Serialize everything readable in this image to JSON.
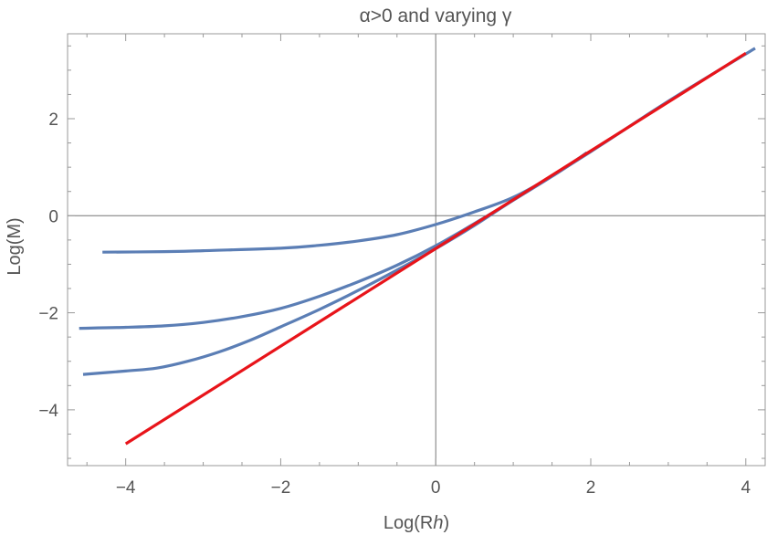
{
  "chart_data": {
    "type": "line",
    "title": "α>0 and varying γ",
    "xlabel": "Log(R",
    "xlabel_sub": "h",
    "xlabel_end": ")",
    "ylabel": "Log(M)",
    "xlim": [
      -4.75,
      4.25
    ],
    "ylim": [
      -5.15,
      3.75
    ],
    "x_ticks": [
      -4,
      -2,
      0,
      2,
      4
    ],
    "x_tick_labels": [
      "−4",
      "−2",
      "0",
      "2",
      "4"
    ],
    "y_ticks": [
      -4,
      -2,
      0,
      2
    ],
    "y_tick_labels": [
      "−4",
      "−2",
      "0",
      "2"
    ],
    "grid": false,
    "series": [
      {
        "color": "#5b7eb5",
        "points": [
          [
            -4.3,
            -0.75
          ],
          [
            -3.5,
            -0.74
          ],
          [
            -3.0,
            -0.72
          ],
          [
            -2.0,
            -0.67
          ],
          [
            -1.5,
            -0.61
          ],
          [
            -1.0,
            -0.52
          ],
          [
            -0.5,
            -0.39
          ],
          [
            0.0,
            -0.18
          ],
          [
            0.5,
            0.08
          ],
          [
            1.0,
            0.38
          ],
          [
            1.5,
            0.82
          ],
          [
            1.95,
            1.3
          ]
        ]
      },
      {
        "color": "#5b7eb5",
        "points": [
          [
            -4.6,
            -2.32
          ],
          [
            -4.0,
            -2.3
          ],
          [
            -3.5,
            -2.27
          ],
          [
            -3.0,
            -2.2
          ],
          [
            -2.5,
            -2.08
          ],
          [
            -2.0,
            -1.91
          ],
          [
            -1.5,
            -1.66
          ],
          [
            -1.0,
            -1.36
          ],
          [
            -0.5,
            -1.02
          ],
          [
            0.0,
            -0.62
          ],
          [
            0.5,
            -0.16
          ],
          [
            1.0,
            0.32
          ],
          [
            1.5,
            0.81
          ],
          [
            1.92,
            1.25
          ]
        ]
      },
      {
        "color": "#5b7eb5",
        "points": [
          [
            -4.55,
            -3.27
          ],
          [
            -4.0,
            -3.2
          ],
          [
            -3.6,
            -3.14
          ],
          [
            -3.2,
            -3.0
          ],
          [
            -2.8,
            -2.81
          ],
          [
            -2.4,
            -2.57
          ],
          [
            -2.0,
            -2.29
          ],
          [
            -1.5,
            -1.93
          ],
          [
            -1.0,
            -1.54
          ],
          [
            -0.5,
            -1.12
          ],
          [
            0.0,
            -0.68
          ],
          [
            0.5,
            -0.2
          ],
          [
            1.0,
            0.32
          ],
          [
            2.0,
            1.32
          ],
          [
            3.0,
            2.36
          ],
          [
            4.12,
            3.45
          ]
        ]
      },
      {
        "color": "#e8141a",
        "points": [
          [
            -4.0,
            -4.7
          ],
          [
            4.0,
            3.35
          ]
        ]
      }
    ]
  }
}
